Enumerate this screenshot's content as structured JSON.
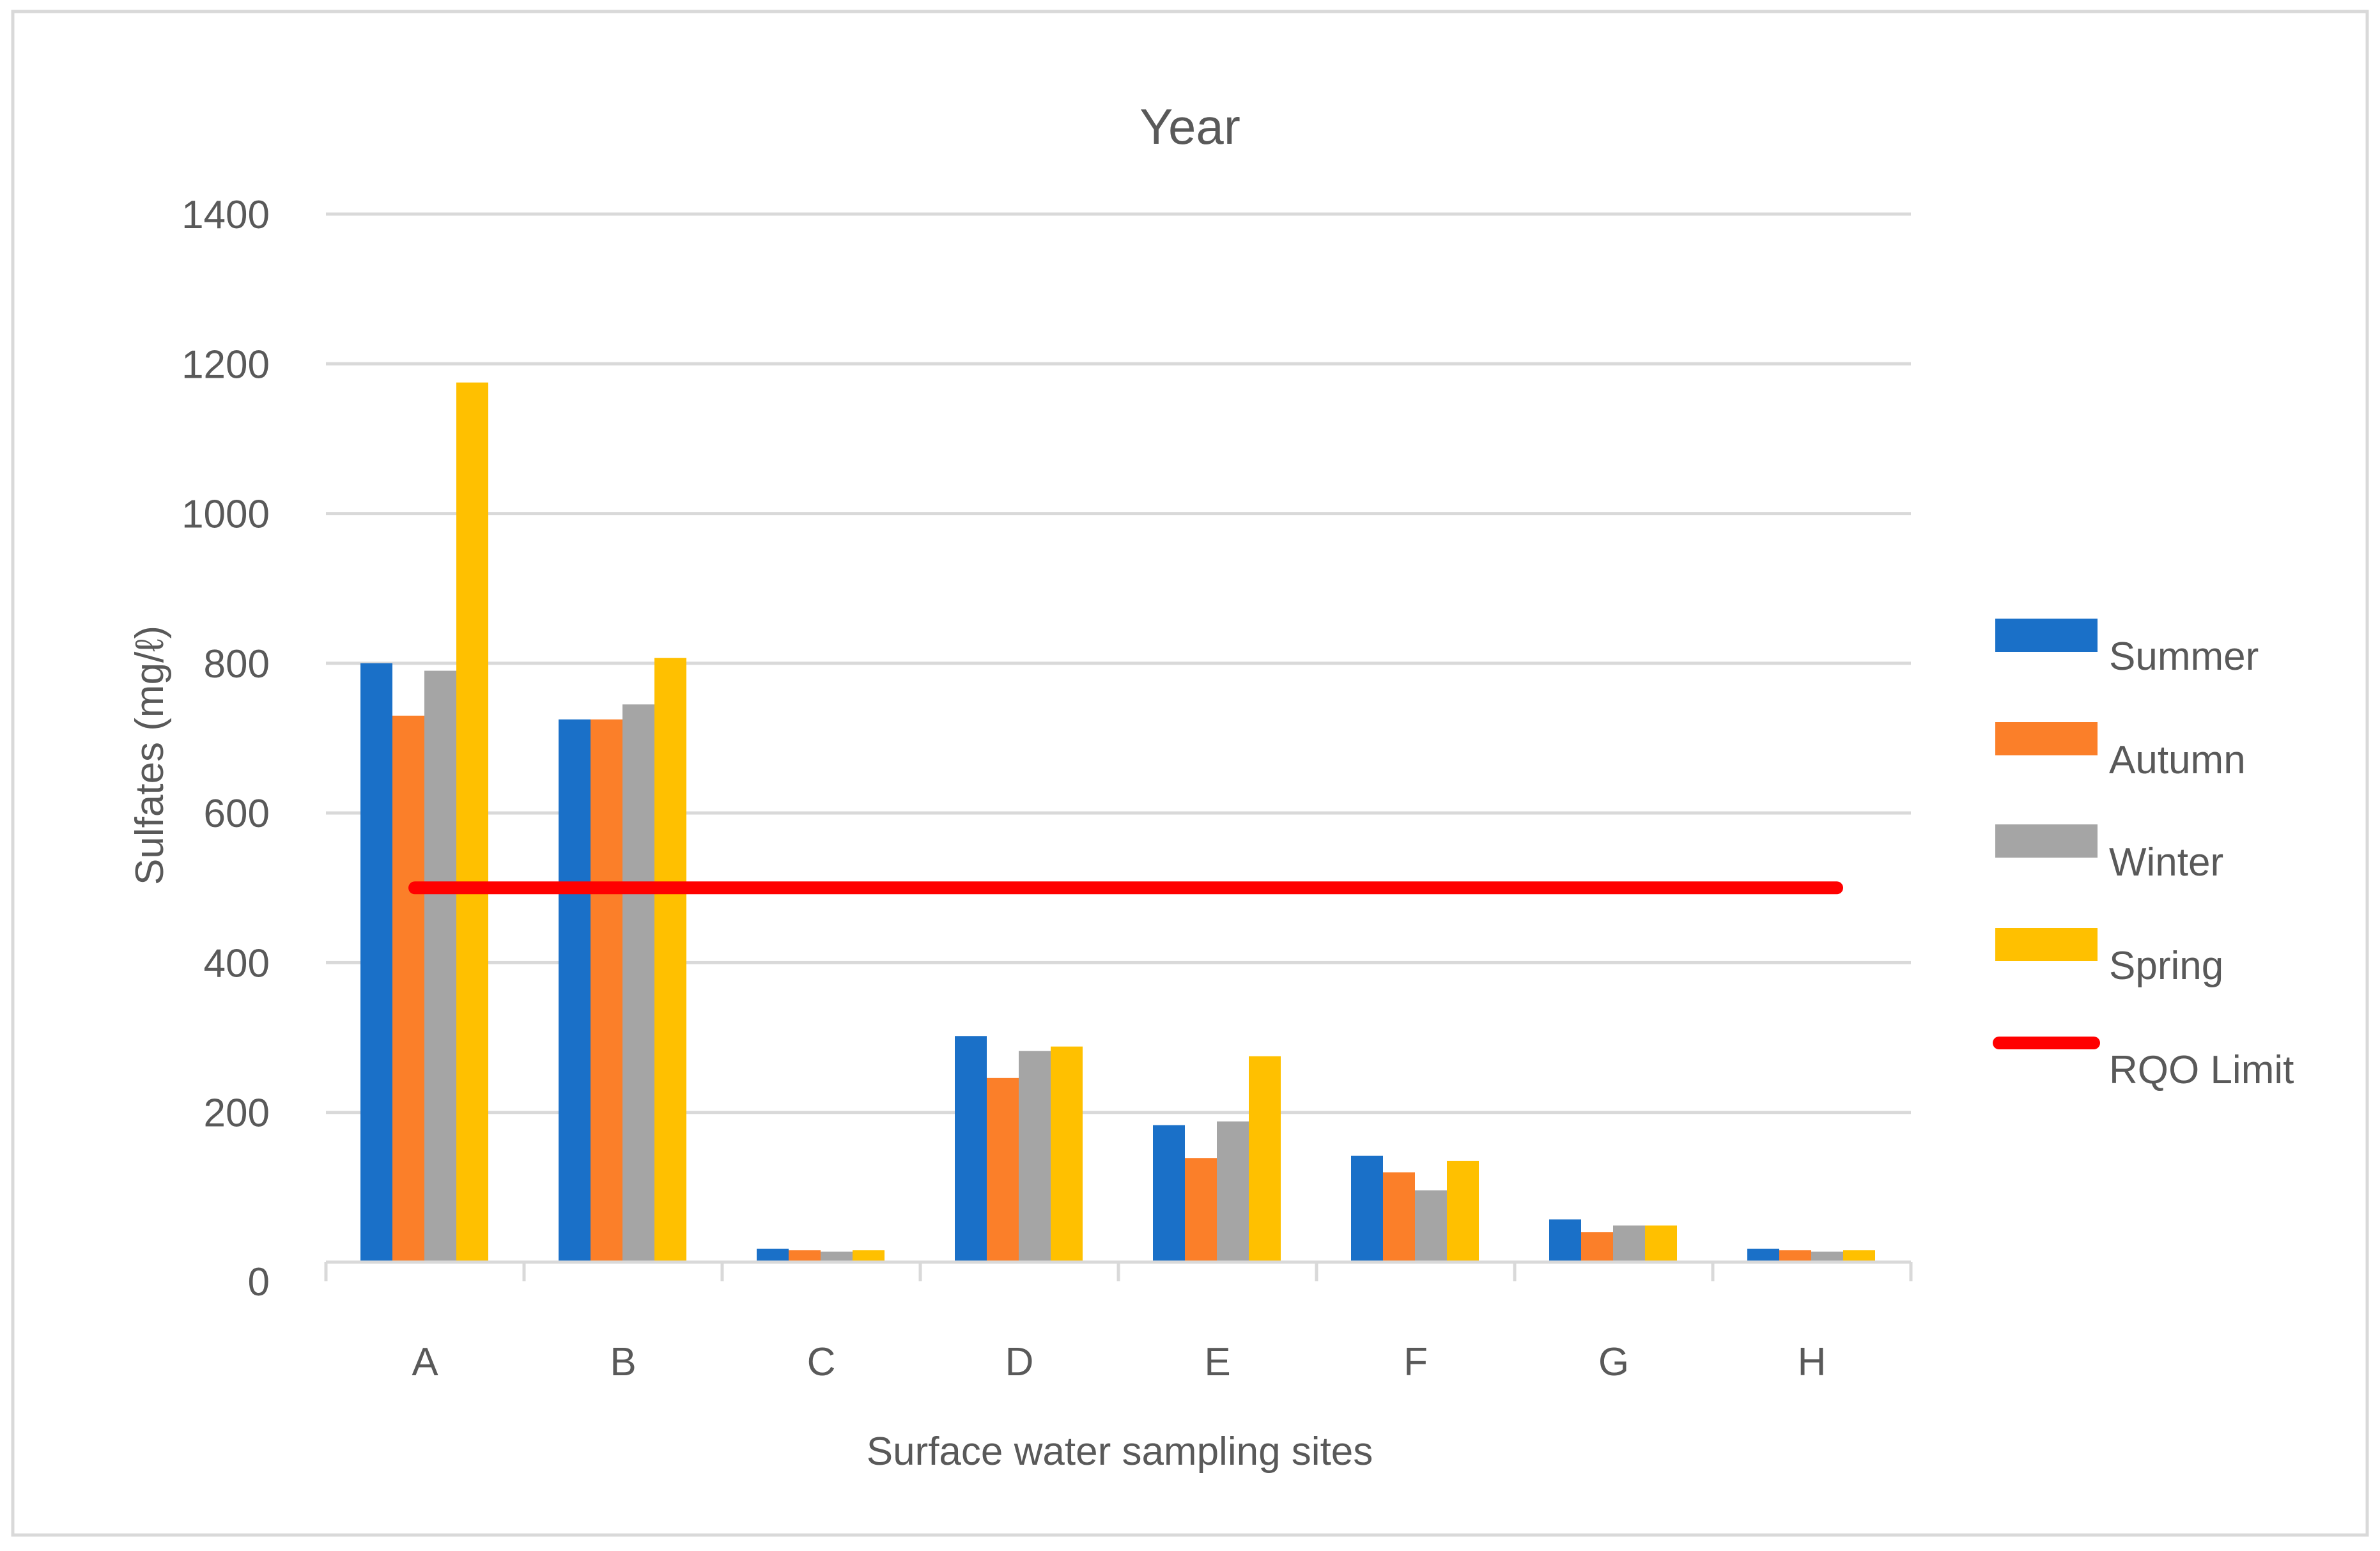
{
  "chart_data": {
    "type": "bar",
    "title": "Year",
    "xlabel": "Surface water sampling sites",
    "ylabel": "Sulfates (mg/ℓ)",
    "ylim": [
      0,
      1400
    ],
    "yticks": [
      0,
      200,
      400,
      600,
      800,
      1000,
      1200,
      1400
    ],
    "grid": true,
    "legend_position": "right",
    "categories": [
      "A",
      "B",
      "C",
      "D",
      "E",
      "F",
      "G",
      "H"
    ],
    "series": [
      {
        "name": "Summer",
        "color": "#1a70c8",
        "values": [
          800,
          725,
          18,
          302,
          183,
          142,
          57,
          18
        ]
      },
      {
        "name": "Autumn",
        "color": "#fb7f29",
        "values": [
          730,
          725,
          16,
          246,
          139,
          120,
          40,
          16
        ]
      },
      {
        "name": "Winter",
        "color": "#a5a5a5",
        "values": [
          790,
          745,
          14,
          282,
          188,
          96,
          49,
          14
        ]
      },
      {
        "name": "Spring",
        "color": "#ffc000",
        "values": [
          1175,
          807,
          16,
          288,
          275,
          135,
          49,
          16
        ]
      }
    ],
    "reference_line": {
      "name": "RQO Limit",
      "color": "#ff0000",
      "value": 500
    }
  },
  "colors": {
    "grid": "#d9d9d9",
    "axis": "#d9d9d9",
    "text": "#595959",
    "border": "#d9d9d9"
  }
}
